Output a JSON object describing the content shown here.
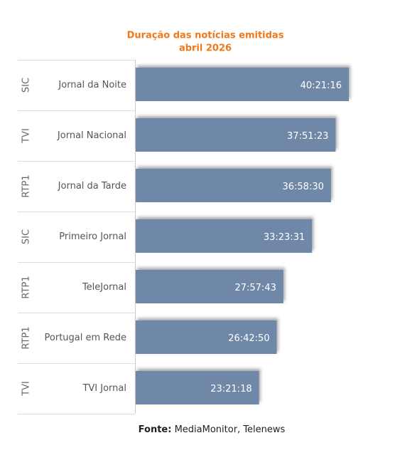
{
  "chart_data": {
    "type": "bar",
    "orientation": "horizontal",
    "title": "Duração das notícias emitidas",
    "subtitle": "abril 2026",
    "groups": [
      "SIC",
      "TVI",
      "RTP1",
      "SIC",
      "RTP1",
      "RTP1",
      "TVI"
    ],
    "categories": [
      "Jornal da Noite",
      "Jornal Nacional",
      "Jornal da Tarde",
      "Primeiro Jornal",
      "TeleJornal",
      "Portugal em Rede",
      "TVI Jornal"
    ],
    "values": [
      145276,
      136283,
      133110,
      120211,
      100663,
      96170,
      84078
    ],
    "value_labels": [
      "40:21:16",
      "37:51:23",
      "36:58:30",
      "33:23:31",
      "27:57:43",
      "26:42:50",
      "23:21:18"
    ],
    "color": "#7088a8",
    "source": {
      "label": "Fonte:",
      "text": "MediaMonitor, Telenews"
    }
  }
}
